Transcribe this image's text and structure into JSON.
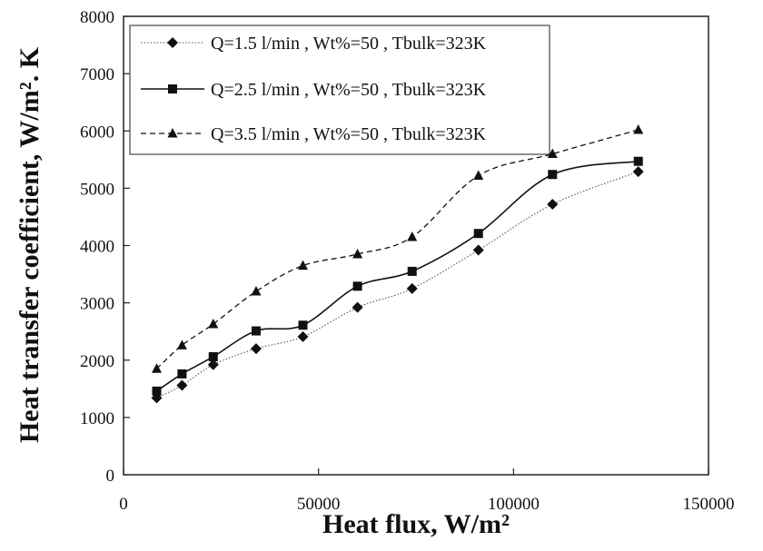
{
  "chart_data": {
    "type": "line",
    "xlabel": "Heat flux, W/m²",
    "ylabel": "Heat transfer coefficient, W/m². K",
    "xlim": [
      0,
      150000
    ],
    "ylim": [
      0,
      8000
    ],
    "xticks": [
      0,
      50000,
      100000,
      150000
    ],
    "yticks": [
      0,
      1000,
      2000,
      3000,
      4000,
      5000,
      6000,
      7000,
      8000
    ],
    "grid": false,
    "legend_position": "top-left",
    "series": [
      {
        "name": "Q=1.5 l/min , Wt%=50 , Tbulk=323K",
        "marker": "diamond",
        "line_style": "dotted",
        "x": [
          8500,
          15000,
          23000,
          34000,
          46000,
          60000,
          74000,
          91000,
          110000,
          132000
        ],
        "y": [
          1340,
          1560,
          1920,
          2200,
          2410,
          2920,
          3250,
          3920,
          4720,
          5290
        ]
      },
      {
        "name": "Q=2.5 l/min , Wt%=50 , Tbulk=323K",
        "marker": "square",
        "line_style": "solid",
        "x": [
          8500,
          15000,
          23000,
          34000,
          46000,
          60000,
          74000,
          91000,
          110000,
          132000
        ],
        "y": [
          1460,
          1760,
          2060,
          2510,
          2610,
          3290,
          3550,
          4210,
          5240,
          5470
        ]
      },
      {
        "name": "Q=3.5 l/min , Wt%=50 , Tbulk=323K",
        "marker": "triangle",
        "line_style": "dashed",
        "x": [
          8500,
          15000,
          23000,
          34000,
          46000,
          60000,
          74000,
          91000,
          110000,
          132000
        ],
        "y": [
          1850,
          2260,
          2630,
          3200,
          3650,
          3850,
          4150,
          5220,
          5600,
          6020
        ]
      }
    ]
  }
}
